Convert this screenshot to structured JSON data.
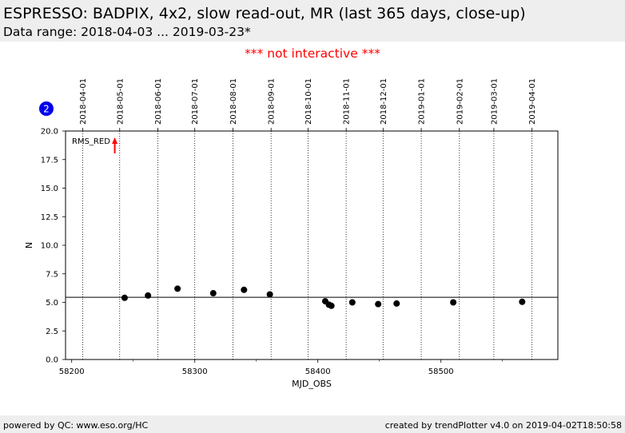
{
  "header": {
    "title": "ESPRESSO: BADPIX, 4x2, slow read-out, MR (last 365 days, close-up)",
    "subtitle": "Data range: 2018-04-03 ... 2019-03-23*"
  },
  "notice": "*** not interactive ***",
  "footer": {
    "left": "powered by QC: www.eso.org/HC",
    "right": "created by trendPlotter v4.0 on 2019-04-02T18:50:58"
  },
  "colors": {
    "header_bg": "#eeeeee",
    "notice": "#ff0000",
    "marker": "#000000",
    "arrow": "#ff0000",
    "badge": "#0000ee"
  },
  "chart_data": {
    "type": "scatter",
    "xlabel": "MJD_OBS",
    "ylabel": "N",
    "xlim": [
      58195,
      58595
    ],
    "ylim": [
      0,
      20
    ],
    "x_ticks": [
      58200,
      58300,
      58400,
      58500
    ],
    "x_tick_labels": [
      "58200",
      "58300",
      "58400",
      "58500"
    ],
    "y_ticks": [
      0,
      2.5,
      5,
      7.5,
      10,
      12.5,
      15,
      17.5,
      20
    ],
    "y_tick_labels": [
      "0.0",
      "2.5",
      "5.0",
      "7.5",
      "10.0",
      "12.5",
      "15.0",
      "17.5",
      "20.0"
    ],
    "month_markers": [
      {
        "mjd": 58209,
        "label": "2018-04-01"
      },
      {
        "mjd": 58239,
        "label": "2018-05-01"
      },
      {
        "mjd": 58270,
        "label": "2018-06-01"
      },
      {
        "mjd": 58300,
        "label": "2018-07-01"
      },
      {
        "mjd": 58331,
        "label": "2018-08-01"
      },
      {
        "mjd": 58362,
        "label": "2018-09-01"
      },
      {
        "mjd": 58392,
        "label": "2018-10-01"
      },
      {
        "mjd": 58423,
        "label": "2018-11-01"
      },
      {
        "mjd": 58453,
        "label": "2018-12-01"
      },
      {
        "mjd": 58484,
        "label": "2019-01-01"
      },
      {
        "mjd": 58515,
        "label": "2019-02-01"
      },
      {
        "mjd": 58543,
        "label": "2019-03-01"
      },
      {
        "mjd": 58574,
        "label": "2019-04-01"
      }
    ],
    "reference_line_y": 5.45,
    "series": [
      {
        "x": [
          58243,
          58262,
          58286,
          58315,
          58340,
          58361,
          58406,
          58409,
          58411,
          58428,
          58449,
          58464,
          58510,
          58566
        ],
        "y": [
          5.4,
          5.6,
          6.2,
          5.8,
          6.1,
          5.7,
          5.1,
          4.8,
          4.7,
          5.0,
          4.85,
          4.9,
          5.0,
          5.05
        ]
      }
    ],
    "annotation": {
      "label": "RMS_RED",
      "mjd": 58235,
      "direction": "up"
    },
    "badge": "2"
  }
}
